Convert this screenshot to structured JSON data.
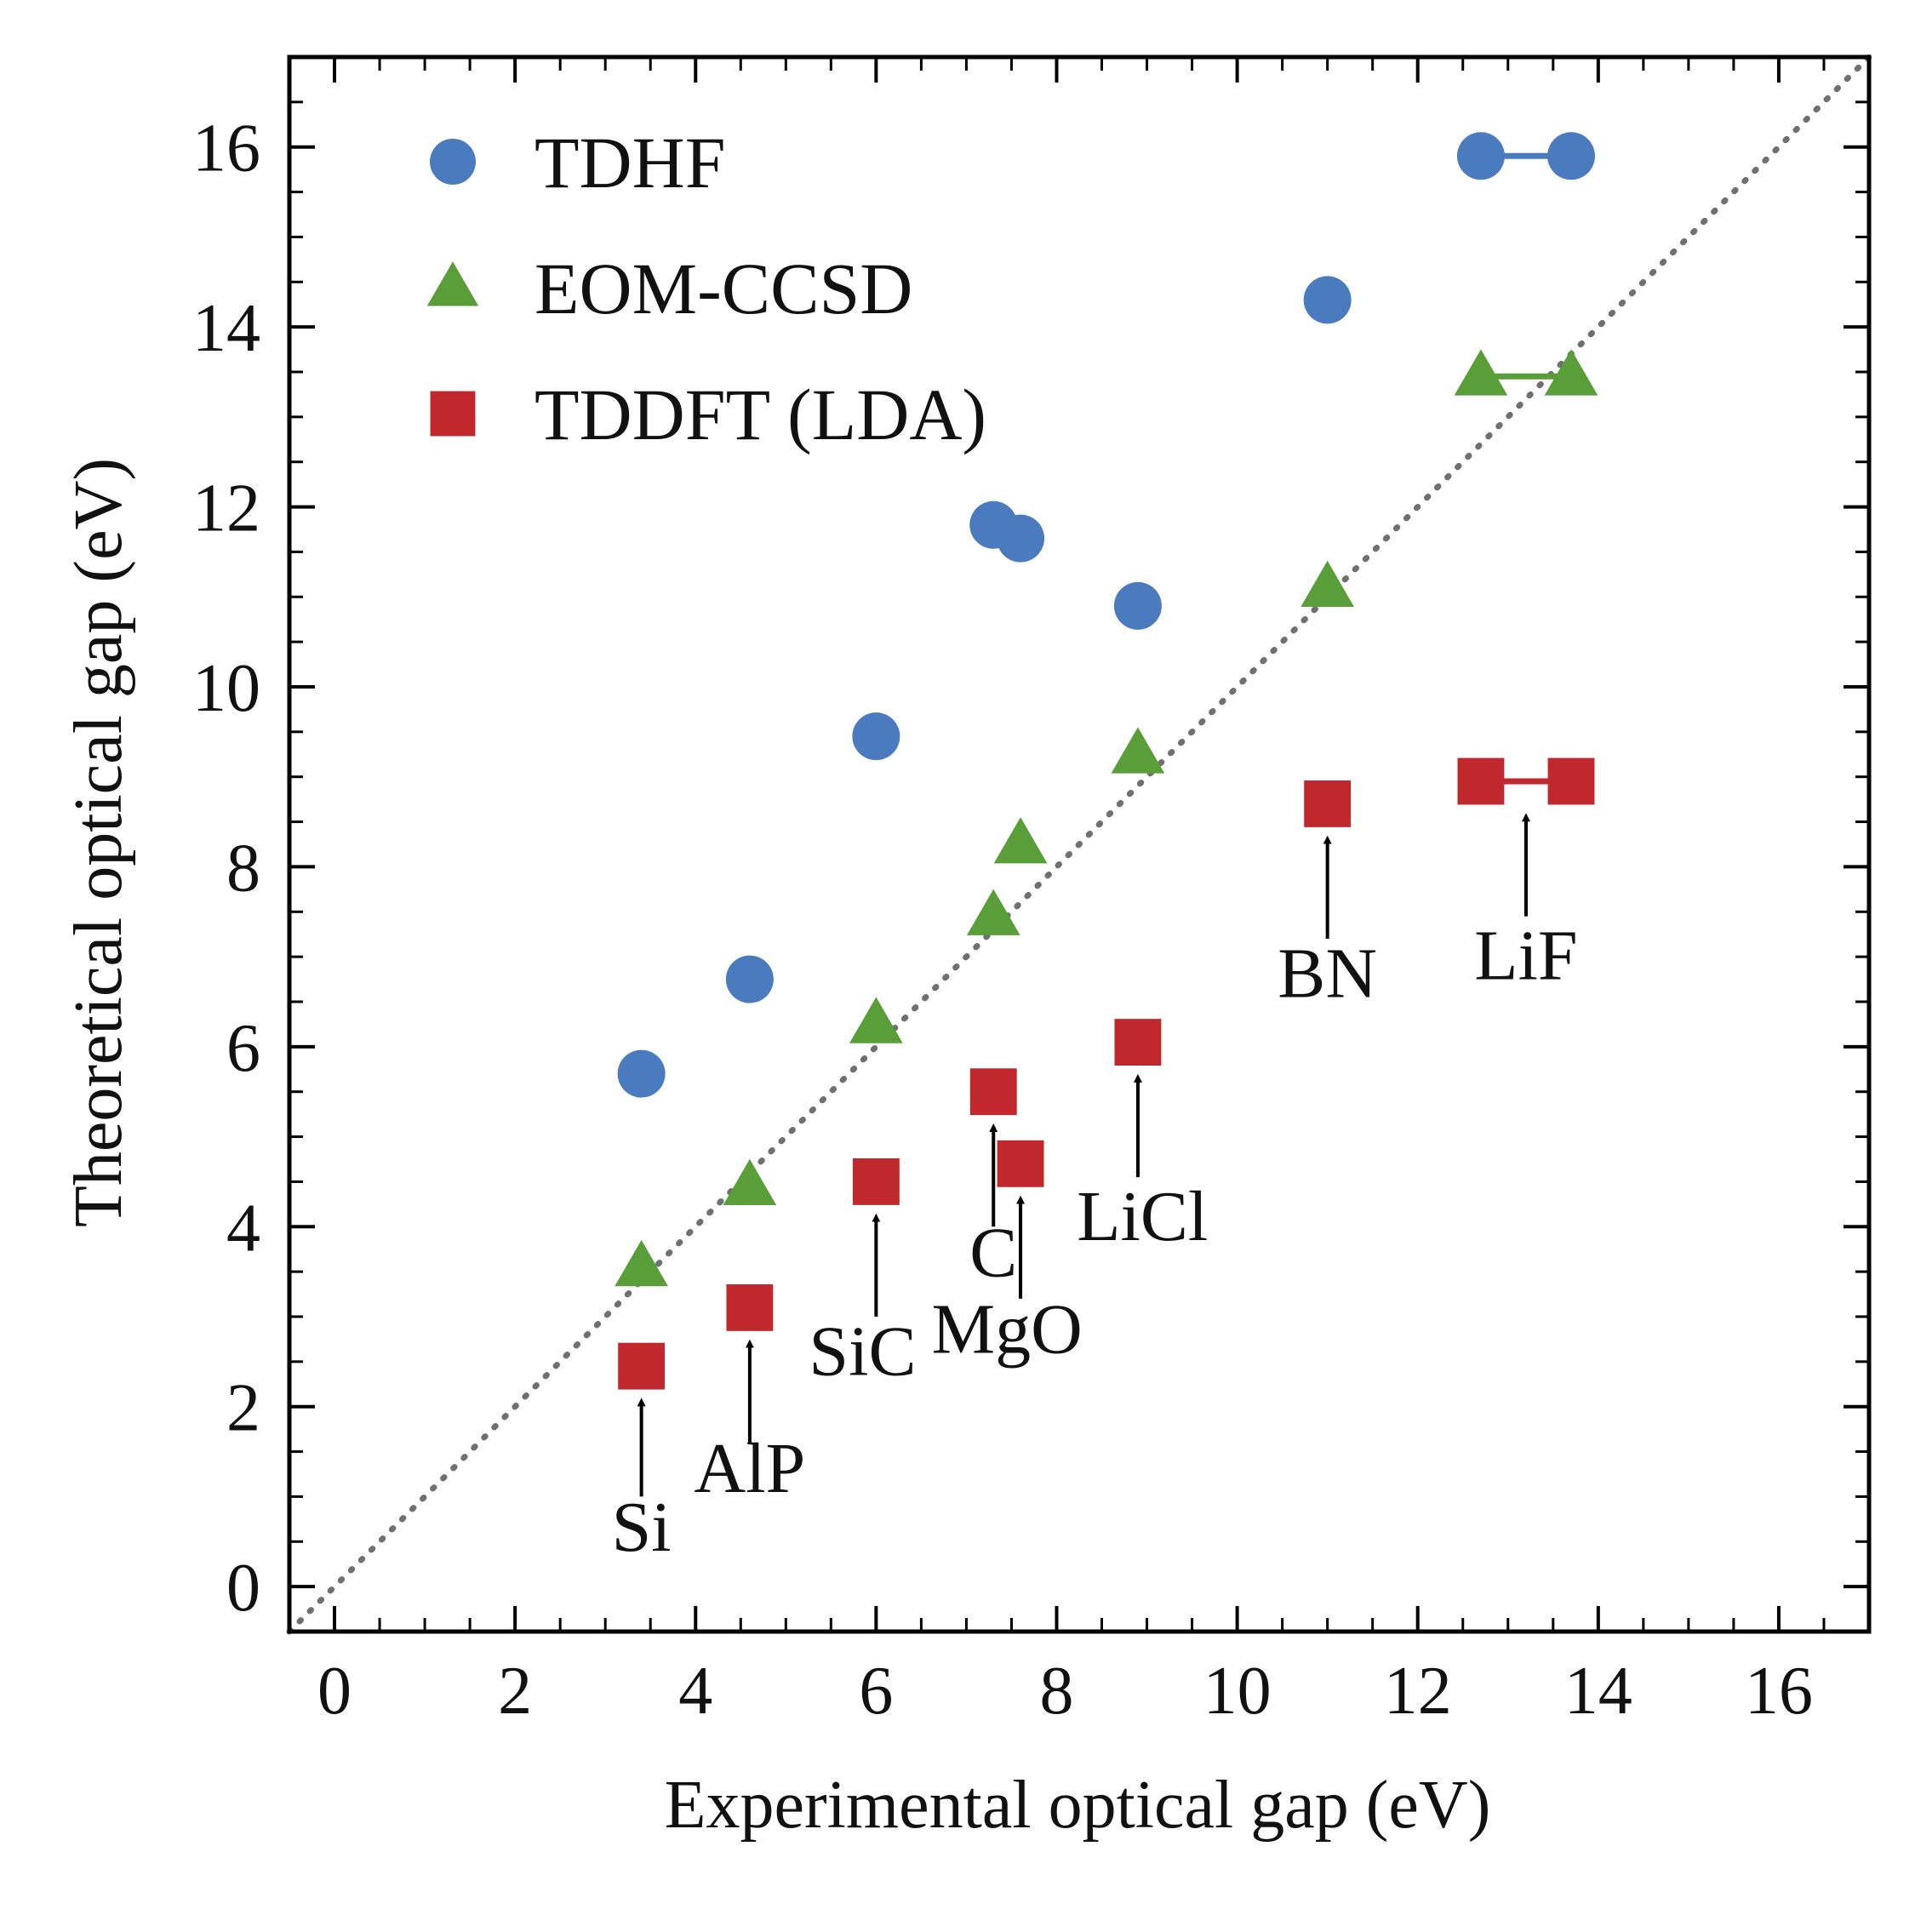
{
  "chart_data": {
    "type": "scatter",
    "xlabel": "Experimental optical gap (eV)",
    "ylabel": "Theoretical optical gap (eV)",
    "xlim": [
      -0.5,
      17
    ],
    "ylim": [
      -0.5,
      17
    ],
    "xticks": [
      0,
      2,
      4,
      6,
      8,
      10,
      12,
      14,
      16
    ],
    "yticks": [
      0,
      2,
      4,
      6,
      8,
      10,
      12,
      14,
      16
    ],
    "xtick_labels": [
      "0",
      "2",
      "4",
      "6",
      "8",
      "10",
      "12",
      "14",
      "16"
    ],
    "ytick_labels": [
      "0",
      "2",
      "4",
      "6",
      "8",
      "10",
      "12",
      "14",
      "16"
    ],
    "legend_position": "top-left",
    "reference_line": "y = x",
    "series": [
      {
        "name": "TDHF",
        "marker": "circle",
        "color": "#4a7bbf",
        "points": [
          {
            "x": 3.4,
            "y": 5.7
          },
          {
            "x": 4.6,
            "y": 6.75
          },
          {
            "x": 6.0,
            "y": 9.45
          },
          {
            "x": 7.3,
            "y": 11.8
          },
          {
            "x": 7.6,
            "y": 11.65
          },
          {
            "x": 8.9,
            "y": 10.9
          },
          {
            "x": 11.0,
            "y": 14.3
          },
          {
            "x": 12.7,
            "y": 15.9
          },
          {
            "x": 13.7,
            "y": 15.9
          }
        ]
      },
      {
        "name": "EOM-CCSD",
        "marker": "triangle",
        "color": "#5a9e3a",
        "points": [
          {
            "x": 3.4,
            "y": 3.55
          },
          {
            "x": 4.6,
            "y": 4.45
          },
          {
            "x": 6.0,
            "y": 6.25
          },
          {
            "x": 7.3,
            "y": 7.45
          },
          {
            "x": 7.6,
            "y": 8.25
          },
          {
            "x": 8.9,
            "y": 9.25
          },
          {
            "x": 11.0,
            "y": 11.1
          },
          {
            "x": 12.7,
            "y": 13.45
          },
          {
            "x": 13.7,
            "y": 13.45
          }
        ]
      },
      {
        "name": "TDDFT (LDA)",
        "marker": "square",
        "color": "#c0282d",
        "points": [
          {
            "x": 3.4,
            "y": 2.45
          },
          {
            "x": 4.6,
            "y": 3.1
          },
          {
            "x": 6.0,
            "y": 4.5
          },
          {
            "x": 7.3,
            "y": 5.5
          },
          {
            "x": 7.6,
            "y": 4.7
          },
          {
            "x": 8.9,
            "y": 6.05
          },
          {
            "x": 11.0,
            "y": 8.7
          },
          {
            "x": 12.7,
            "y": 8.95
          },
          {
            "x": 13.7,
            "y": 8.95
          }
        ]
      }
    ],
    "ranges": [
      {
        "series": "TDHF",
        "x": [
          12.7,
          13.7
        ],
        "y": 15.9
      },
      {
        "series": "EOM-CCSD",
        "x": [
          12.7,
          13.7
        ],
        "y": 13.45
      },
      {
        "series": "TDDFT (LDA)",
        "x": [
          12.7,
          13.7
        ],
        "y": 8.95
      }
    ],
    "annotations": [
      {
        "label": "Si",
        "arrow_x": 3.4,
        "arrow_tip_y": 2.05,
        "arrow_tail_y": 1.0,
        "label_x": 3.4,
        "label_y": 0.4
      },
      {
        "label": "AlP",
        "arrow_x": 4.6,
        "arrow_tip_y": 2.7,
        "arrow_tail_y": 1.6,
        "label_x": 4.6,
        "label_y": 1.05
      },
      {
        "label": "SiC",
        "arrow_x": 6.0,
        "arrow_tip_y": 4.1,
        "arrow_tail_y": 3.0,
        "label_x": 5.85,
        "label_y": 2.35
      },
      {
        "label": "C",
        "arrow_x": 7.3,
        "arrow_tip_y": 5.1,
        "arrow_tail_y": 4.0,
        "label_x": 7.3,
        "label_y": 3.45
      },
      {
        "label": "MgO",
        "arrow_x": 7.6,
        "arrow_tip_y": 4.3,
        "arrow_tail_y": 3.2,
        "label_x": 7.45,
        "label_y": 2.6
      },
      {
        "label": "LiCl",
        "arrow_x": 8.9,
        "arrow_tip_y": 5.65,
        "arrow_tail_y": 4.55,
        "label_x": 8.95,
        "label_y": 3.85
      },
      {
        "label": "BN",
        "arrow_x": 11.0,
        "arrow_tip_y": 8.3,
        "arrow_tail_y": 7.2,
        "label_x": 11.0,
        "label_y": 6.55
      },
      {
        "label": "LiF",
        "arrow_x": 13.2,
        "arrow_tip_y": 8.55,
        "arrow_tail_y": 7.45,
        "label_x": 13.2,
        "label_y": 6.75
      }
    ]
  }
}
